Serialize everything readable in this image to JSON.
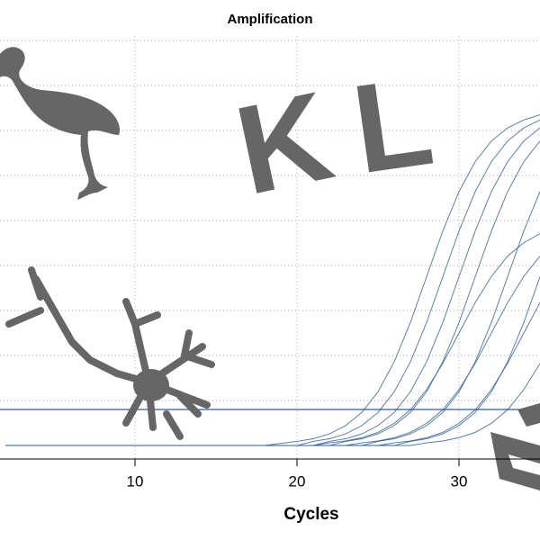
{
  "chart_data": {
    "type": "line",
    "title": "Amplification",
    "x_label": "Cycles",
    "x": [
      2,
      6,
      10,
      14,
      18,
      20,
      21,
      22,
      23,
      24,
      25,
      26,
      27,
      28,
      29,
      30,
      31,
      32,
      33,
      34,
      35
    ],
    "xlim": [
      2,
      35
    ],
    "xticks": [
      10,
      20,
      30
    ],
    "ylim": [
      0,
      1200
    ],
    "ygrid": [
      156,
      276,
      396,
      516,
      636,
      756,
      876,
      996,
      1116
    ],
    "grid": true,
    "threshold": 132,
    "threshold_color": "#2b5a9a",
    "annotations": [
      "K",
      "L"
    ],
    "series": [
      {
        "color": "#2b5a9a",
        "values": [
          36,
          36,
          36,
          36,
          36,
          47,
          54,
          67,
          89,
          124,
          179,
          259,
          364,
          486,
          608,
          713,
          793,
          848,
          883,
          904,
          918
        ]
      },
      {
        "color": "#2b5a9a",
        "values": [
          36,
          36,
          36,
          36,
          36,
          36,
          47,
          54,
          67,
          89,
          124,
          179,
          259,
          364,
          486,
          608,
          713,
          793,
          848,
          883,
          904
        ]
      },
      {
        "color": "#2b5a9a",
        "values": [
          36,
          36,
          36,
          36,
          36,
          36,
          36,
          43,
          48,
          57,
          71,
          95,
          131,
          185,
          255,
          336,
          417,
          487,
          541,
          577,
          601
        ]
      },
      {
        "color": "#2b5a9a",
        "values": [
          36,
          36,
          36,
          36,
          36,
          36,
          36,
          36,
          47,
          54,
          67,
          89,
          124,
          179,
          259,
          364,
          486,
          608,
          713,
          793,
          848
        ]
      },
      {
        "color": "#2b5a9a",
        "values": [
          36,
          36,
          36,
          36,
          36,
          36,
          36,
          36,
          36,
          43,
          48,
          57,
          71,
          95,
          131,
          185,
          255,
          336,
          417,
          487,
          541
        ]
      },
      {
        "color": "#2b5a9a",
        "values": [
          36,
          36,
          36,
          36,
          36,
          36,
          36,
          36,
          36,
          36,
          47,
          54,
          67,
          89,
          124,
          179,
          259,
          364,
          486,
          608,
          713
        ]
      },
      {
        "color": "#2b5a9a",
        "values": [
          36,
          36,
          36,
          36,
          36,
          36,
          36,
          36,
          36,
          36,
          36,
          43,
          48,
          57,
          71,
          95,
          131,
          185,
          255,
          336,
          417
        ]
      },
      {
        "color": "#2b5a9a",
        "values": [
          36,
          36,
          36,
          36,
          36,
          36,
          36,
          36,
          36,
          36,
          36,
          36,
          47,
          54,
          67,
          89,
          124,
          179,
          259,
          364,
          486
        ]
      },
      {
        "color": "#2b5a9a",
        "values": [
          36,
          36,
          36,
          36,
          36,
          36,
          36,
          36,
          36,
          36,
          36,
          36,
          36,
          43,
          48,
          57,
          71,
          95,
          131,
          185,
          255
        ]
      },
      {
        "color": "#2b5a9a",
        "values": [
          36,
          36,
          36,
          36,
          36,
          36,
          36,
          47,
          54,
          67,
          89,
          124,
          179,
          259,
          364,
          486,
          608,
          713,
          793,
          848,
          883
        ]
      }
    ]
  }
}
